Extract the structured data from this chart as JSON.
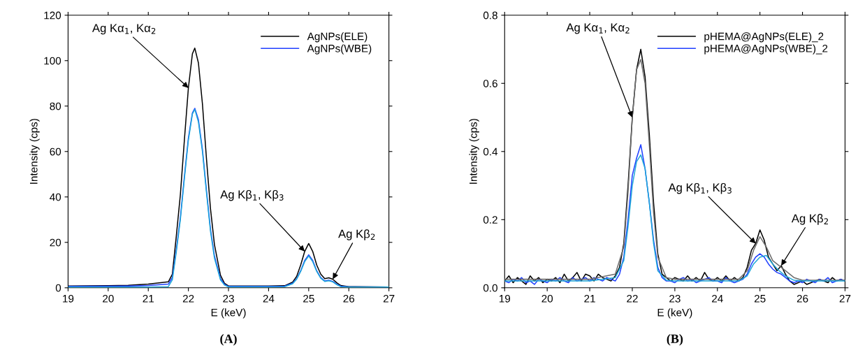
{
  "chart_data": [
    {
      "type": "line",
      "title": "(A)",
      "xlabel": "E (keV)",
      "ylabel": "Intensity (cps)",
      "x": [
        19,
        20,
        20.5,
        21,
        21.5,
        21.6,
        21.7,
        21.8,
        21.9,
        22.0,
        22.1,
        22.16,
        22.25,
        22.35,
        22.45,
        22.55,
        22.65,
        22.8,
        22.9,
        23,
        24,
        24.4,
        24.6,
        24.7,
        24.8,
        24.9,
        25.0,
        25.1,
        25.2,
        25.3,
        25.4,
        25.5,
        25.6,
        25.7,
        25.8,
        26,
        27
      ],
      "series": [
        {
          "name": "AgNPs(ELE)",
          "color": "#000000",
          "values": [
            0.8,
            0.9,
            1.1,
            1.6,
            2.6,
            6,
            23,
            41,
            65,
            88,
            103,
            105.5,
            99,
            81,
            57,
            35,
            19,
            5.5,
            2,
            0.8,
            0.8,
            0.9,
            2.5,
            5,
            10,
            16,
            19.5,
            16,
            10,
            6,
            4,
            4.4,
            3.8,
            2.2,
            1.0,
            0.5,
            0.3
          ]
        },
        {
          "name": "AgNPs(WBE)",
          "color": "#1f3fff",
          "values": [
            0.6,
            0.7,
            0.8,
            1.0,
            1.6,
            4.5,
            17,
            31,
            49,
            66,
            77,
            79,
            74,
            61,
            43,
            26,
            14,
            4,
            1.5,
            0.6,
            0.6,
            0.7,
            2,
            4,
            7.5,
            12,
            14.5,
            12,
            7.5,
            4.5,
            3,
            3.3,
            2.8,
            1.6,
            0.7,
            0.4,
            0.3
          ]
        },
        {
          "color": "#20a8d8",
          "values": [
            0.3,
            0.3,
            0.3,
            0.3,
            0.5,
            3.5,
            16,
            30,
            48,
            65,
            76.5,
            78.5,
            73,
            60,
            42,
            25,
            13,
            3.5,
            1.2,
            0.4,
            0.4,
            0.5,
            1.8,
            3.8,
            7.2,
            11.5,
            14,
            11.5,
            7.2,
            4.2,
            2.8,
            3.1,
            2.6,
            1.4,
            0.5,
            0.3,
            0.3
          ]
        }
      ],
      "xlim": [
        19,
        27
      ],
      "xticks": [
        19,
        20,
        21,
        22,
        23,
        24,
        25,
        26,
        27
      ],
      "ylim": [
        0,
        120
      ],
      "yticks": [
        0,
        20,
        40,
        60,
        80,
        100,
        120
      ],
      "legend": "top right",
      "grid": false,
      "annotations": [
        {
          "text": "Ag Kα$_{1}$, Kα$_{2}$",
          "x": 22.0,
          "y": 88
        },
        {
          "text": "Ag Kβ$_{1}$, Kβ$_{3}$",
          "x": 24.9,
          "y": 16
        },
        {
          "text": "Ag Kβ$_{2}$",
          "x": 25.6,
          "y": 3.8
        }
      ]
    },
    {
      "type": "line",
      "title": "(B)",
      "xlabel": "E (keV)",
      "ylabel": "Intensity (cps)",
      "x": [
        19.0,
        19.1,
        19.2,
        19.3,
        19.4,
        19.5,
        19.6,
        19.7,
        19.8,
        19.9,
        20.0,
        20.1,
        20.2,
        20.3,
        20.4,
        20.5,
        20.6,
        20.7,
        20.8,
        20.9,
        21.0,
        21.1,
        21.2,
        21.3,
        21.4,
        21.5,
        21.6,
        21.7,
        21.8,
        21.9,
        22.0,
        22.1,
        22.2,
        22.3,
        22.4,
        22.5,
        22.6,
        22.7,
        22.8,
        22.9,
        23.0,
        23.1,
        23.2,
        23.3,
        23.4,
        23.5,
        23.6,
        23.7,
        23.8,
        23.9,
        24.0,
        24.1,
        24.2,
        24.3,
        24.4,
        24.5,
        24.6,
        24.7,
        24.8,
        24.9,
        25.0,
        25.1,
        25.2,
        25.3,
        25.4,
        25.5,
        25.6,
        25.7,
        25.8,
        25.9,
        26.0,
        26.1,
        26.2,
        26.3,
        26.4,
        26.5,
        26.6,
        26.7,
        26.8,
        26.9,
        27.0
      ],
      "series": [
        {
          "name": "pHEMA@AgNPs(ELE)_2",
          "color": "#000000",
          "values": [
            0.02,
            0.035,
            0.015,
            0.03,
            0.02,
            0.01,
            0.035,
            0.02,
            0.03,
            0.015,
            0.025,
            0.02,
            0.03,
            0.015,
            0.04,
            0.02,
            0.03,
            0.045,
            0.02,
            0.04,
            0.035,
            0.02,
            0.04,
            0.03,
            0.025,
            0.02,
            0.035,
            0.06,
            0.13,
            0.3,
            0.5,
            0.64,
            0.7,
            0.62,
            0.45,
            0.25,
            0.1,
            0.04,
            0.03,
            0.02,
            0.03,
            0.025,
            0.02,
            0.035,
            0.02,
            0.03,
            0.02,
            0.045,
            0.025,
            0.02,
            0.03,
            0.02,
            0.035,
            0.02,
            0.03,
            0.02,
            0.03,
            0.06,
            0.11,
            0.13,
            0.17,
            0.14,
            0.09,
            0.07,
            0.05,
            0.065,
            0.04,
            0.02,
            0.01,
            0.015,
            0.02,
            0.01,
            0.015,
            0.02,
            0.025,
            0.02,
            0.015,
            0.03,
            0.02,
            0.025,
            0.02
          ]
        },
        {
          "name": "pHEMA@AgNPs(WBE)_2",
          "color": "#1f3fff",
          "values": [
            0.02,
            0.015,
            0.025,
            0.02,
            0.03,
            0.015,
            0.02,
            0.01,
            0.025,
            0.02,
            0.015,
            0.025,
            0.02,
            0.03,
            0.02,
            0.015,
            0.03,
            0.02,
            0.025,
            0.03,
            0.02,
            0.03,
            0.025,
            0.02,
            0.03,
            0.025,
            0.02,
            0.04,
            0.09,
            0.2,
            0.33,
            0.38,
            0.42,
            0.35,
            0.25,
            0.14,
            0.06,
            0.03,
            0.02,
            0.02,
            0.015,
            0.025,
            0.03,
            0.02,
            0.025,
            0.015,
            0.02,
            0.025,
            0.03,
            0.02,
            0.02,
            0.015,
            0.03,
            0.02,
            0.015,
            0.02,
            0.025,
            0.04,
            0.07,
            0.09,
            0.1,
            0.09,
            0.07,
            0.055,
            0.045,
            0.04,
            0.03,
            0.02,
            0.015,
            0.02,
            0.015,
            0.025,
            0.02,
            0.015,
            0.025,
            0.02,
            0.03,
            0.015,
            0.02,
            0.025,
            0.02
          ]
        },
        {
          "color": "#6e6e6e",
          "x": [
            19,
            21,
            21.6,
            21.8,
            21.9,
            22.0,
            22.1,
            22.2,
            22.3,
            22.4,
            22.5,
            22.6,
            22.8,
            23,
            24.5,
            24.7,
            24.85,
            25.0,
            25.15,
            25.3,
            25.45,
            25.6,
            25.8,
            26,
            27
          ],
          "values": [
            0.025,
            0.025,
            0.04,
            0.12,
            0.28,
            0.5,
            0.64,
            0.67,
            0.6,
            0.42,
            0.22,
            0.09,
            0.03,
            0.025,
            0.025,
            0.05,
            0.11,
            0.15,
            0.12,
            0.08,
            0.065,
            0.05,
            0.03,
            0.022,
            0.022
          ]
        },
        {
          "color": "#20a8d8",
          "x": [
            19,
            21,
            21.6,
            21.8,
            21.9,
            22.0,
            22.1,
            22.2,
            22.3,
            22.4,
            22.5,
            22.6,
            22.8,
            23,
            24.5,
            24.7,
            24.85,
            25.0,
            25.15,
            25.3,
            25.45,
            25.6,
            25.8,
            26,
            27
          ],
          "values": [
            0.02,
            0.02,
            0.03,
            0.08,
            0.18,
            0.3,
            0.37,
            0.39,
            0.35,
            0.25,
            0.13,
            0.05,
            0.022,
            0.02,
            0.02,
            0.035,
            0.07,
            0.09,
            0.095,
            0.07,
            0.05,
            0.035,
            0.022,
            0.02,
            0.02
          ]
        }
      ],
      "xlim": [
        19,
        27
      ],
      "xticks": [
        19,
        20,
        21,
        22,
        23,
        24,
        25,
        26,
        27
      ],
      "ylim": [
        0.0,
        0.8
      ],
      "yticks": [
        {
          "value": 0.0,
          "label": "0.0"
        },
        0.2,
        0.4,
        0.6,
        0.8
      ],
      "legend": "top right",
      "grid": false,
      "annotations": [
        {
          "text": "Ag Kα$_{1}$, Kα$_{2}$",
          "x": 22.0,
          "y": 0.5
        },
        {
          "text": "Ag Kβ$_{1}$, Kβ$_{3}$",
          "x": 24.9,
          "y": 0.13
        },
        {
          "text": "Ag Kβ$_{2}$",
          "x": 25.5,
          "y": 0.065
        }
      ]
    }
  ]
}
